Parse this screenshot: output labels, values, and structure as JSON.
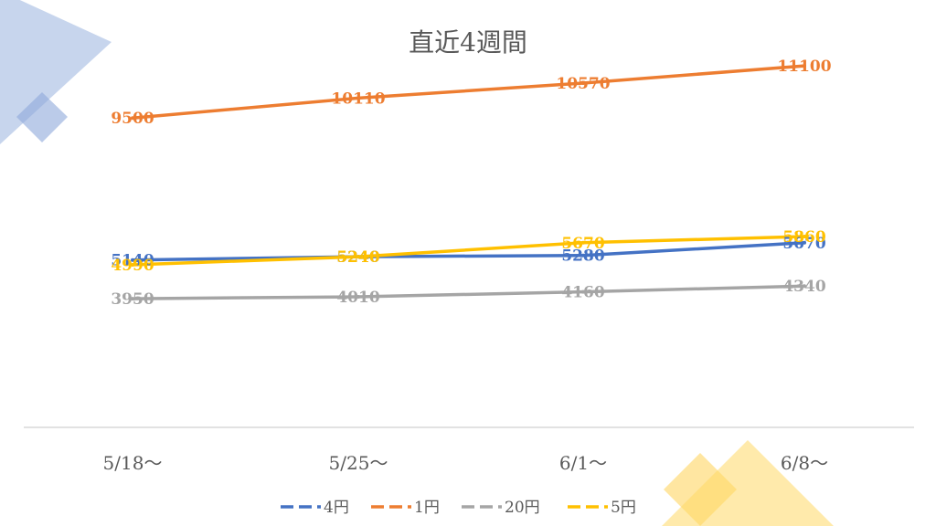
{
  "chart_data": {
    "type": "line",
    "title": "直近4週間",
    "xlabel": "",
    "ylabel": "",
    "categories": [
      "5/18～",
      "5/25～",
      "6/1～",
      "6/8～"
    ],
    "ylim": [
      0,
      12000
    ],
    "grid": false,
    "legend_position": "bottom",
    "series": [
      {
        "name": "4円",
        "color": "#4472C4",
        "values": [
          5140,
          5240,
          5280,
          5670
        ]
      },
      {
        "name": "1円",
        "color": "#ED7D31",
        "values": [
          9500,
          10110,
          10570,
          11100
        ]
      },
      {
        "name": "20円",
        "color": "#A5A5A5",
        "values": [
          3950,
          4010,
          4160,
          4340
        ]
      },
      {
        "name": "5円",
        "color": "#FFC000",
        "values": [
          4990,
          5240,
          5670,
          5860
        ]
      }
    ]
  }
}
